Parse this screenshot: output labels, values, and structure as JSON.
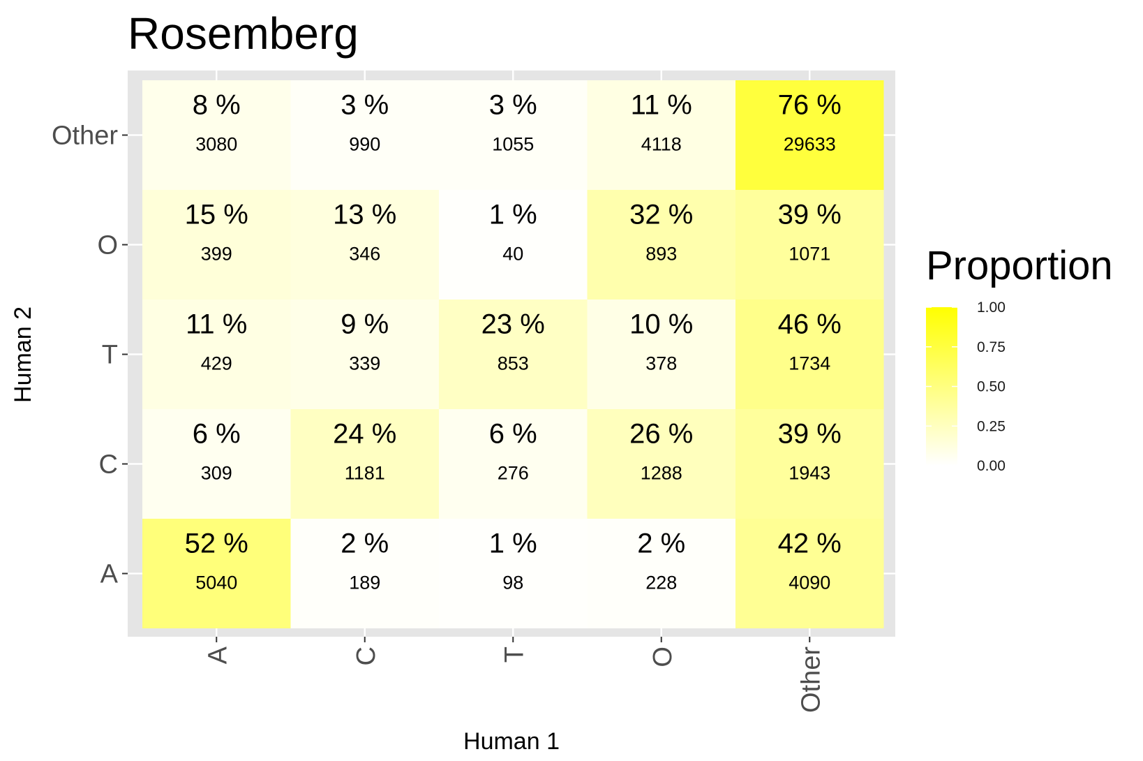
{
  "chart_data": {
    "type": "heatmap",
    "title": "Rosemberg",
    "xlabel": "Human 1",
    "ylabel": "Human 2",
    "x_categories": [
      "A",
      "C",
      "T",
      "O",
      "Other"
    ],
    "y_categories": [
      "A",
      "C",
      "T",
      "O",
      "Other"
    ],
    "cells": [
      {
        "x": "A",
        "y": "Other",
        "pct_label": "8 %",
        "proportion": 0.08,
        "count": 3080
      },
      {
        "x": "C",
        "y": "Other",
        "pct_label": "3 %",
        "proportion": 0.03,
        "count": 990
      },
      {
        "x": "T",
        "y": "Other",
        "pct_label": "3 %",
        "proportion": 0.03,
        "count": 1055
      },
      {
        "x": "O",
        "y": "Other",
        "pct_label": "11 %",
        "proportion": 0.11,
        "count": 4118
      },
      {
        "x": "Other",
        "y": "Other",
        "pct_label": "76 %",
        "proportion": 0.76,
        "count": 29633
      },
      {
        "x": "A",
        "y": "O",
        "pct_label": "15 %",
        "proportion": 0.15,
        "count": 399
      },
      {
        "x": "C",
        "y": "O",
        "pct_label": "13 %",
        "proportion": 0.13,
        "count": 346
      },
      {
        "x": "T",
        "y": "O",
        "pct_label": "1 %",
        "proportion": 0.01,
        "count": 40
      },
      {
        "x": "O",
        "y": "O",
        "pct_label": "32 %",
        "proportion": 0.32,
        "count": 893
      },
      {
        "x": "Other",
        "y": "O",
        "pct_label": "39 %",
        "proportion": 0.39,
        "count": 1071
      },
      {
        "x": "A",
        "y": "T",
        "pct_label": "11 %",
        "proportion": 0.11,
        "count": 429
      },
      {
        "x": "C",
        "y": "T",
        "pct_label": "9 %",
        "proportion": 0.09,
        "count": 339
      },
      {
        "x": "T",
        "y": "T",
        "pct_label": "23 %",
        "proportion": 0.23,
        "count": 853
      },
      {
        "x": "O",
        "y": "T",
        "pct_label": "10 %",
        "proportion": 0.1,
        "count": 378
      },
      {
        "x": "Other",
        "y": "T",
        "pct_label": "46 %",
        "proportion": 0.46,
        "count": 1734
      },
      {
        "x": "A",
        "y": "C",
        "pct_label": "6 %",
        "proportion": 0.06,
        "count": 309
      },
      {
        "x": "C",
        "y": "C",
        "pct_label": "24 %",
        "proportion": 0.24,
        "count": 1181
      },
      {
        "x": "T",
        "y": "C",
        "pct_label": "6 %",
        "proportion": 0.06,
        "count": 276
      },
      {
        "x": "O",
        "y": "C",
        "pct_label": "26 %",
        "proportion": 0.26,
        "count": 1288
      },
      {
        "x": "Other",
        "y": "C",
        "pct_label": "39 %",
        "proportion": 0.39,
        "count": 1943
      },
      {
        "x": "A",
        "y": "A",
        "pct_label": "52 %",
        "proportion": 0.52,
        "count": 5040
      },
      {
        "x": "C",
        "y": "A",
        "pct_label": "2 %",
        "proportion": 0.02,
        "count": 189
      },
      {
        "x": "T",
        "y": "A",
        "pct_label": "1 %",
        "proportion": 0.01,
        "count": 98
      },
      {
        "x": "O",
        "y": "A",
        "pct_label": "2 %",
        "proportion": 0.02,
        "count": 228
      },
      {
        "x": "Other",
        "y": "A",
        "pct_label": "42 %",
        "proportion": 0.42,
        "count": 4090
      }
    ],
    "legend": {
      "title": "Proportion",
      "placement": "right",
      "breaks": [
        1.0,
        0.75,
        0.5,
        0.25,
        0.0
      ],
      "break_labels": [
        "1.00",
        "0.75",
        "0.50",
        "0.25",
        "0.00"
      ],
      "low_color": "#ffffff",
      "high_color": "#ffff00"
    },
    "panel_background": "#e5e5e5",
    "grid": true
  }
}
